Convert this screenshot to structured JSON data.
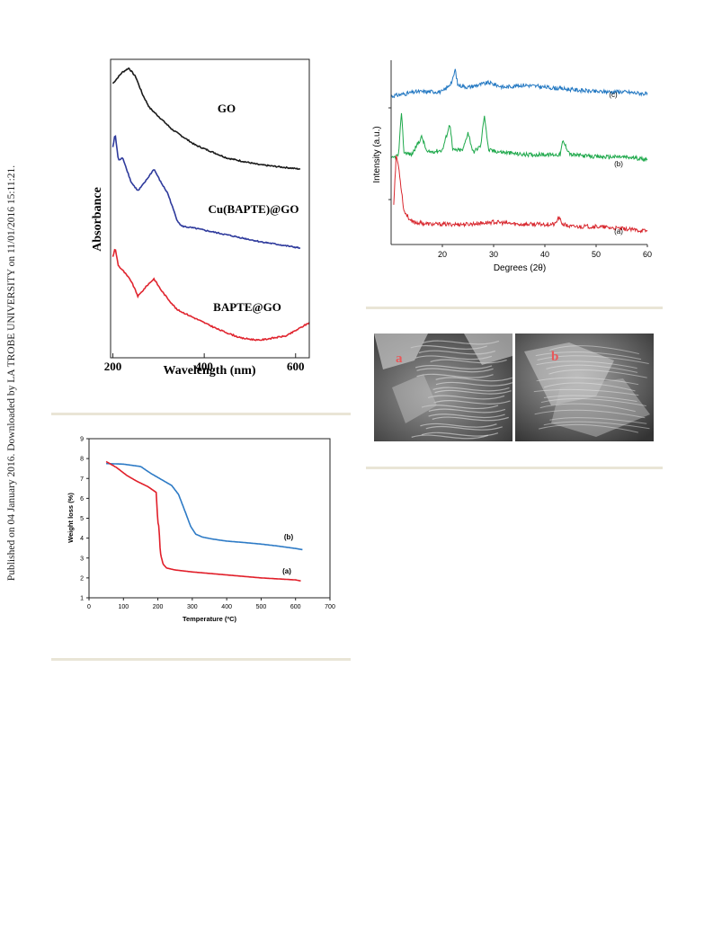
{
  "sidebar_note": "Published on 04 January 2016. Downloaded by LA TROBE UNIVERSITY on 11/01/2016 15:11:21.",
  "colors": {
    "black": "#1b1b1b",
    "blue": "#2e3a9c",
    "red": "#e0252f",
    "tga_red": "#e11f2a",
    "tga_blue": "#2e7bc6",
    "xrd_blue": "#2378c2",
    "xrd_green": "#1da84a",
    "xrd_red": "#d8272e",
    "rule": "#e9e5d6"
  },
  "chart_data": [
    {
      "type": "line",
      "xlabel": "Wavelength (nm)",
      "ylabel": "Absorbance",
      "xticks": [
        "200",
        "400",
        "600"
      ],
      "xlim": [
        195,
        630
      ],
      "series": [
        {
          "name": "GO",
          "x": [
            200,
            220,
            235,
            250,
            265,
            280,
            300,
            330,
            380,
            450,
            520,
            610
          ],
          "y": [
            0.95,
            1.0,
            1.02,
            0.98,
            0.9,
            0.84,
            0.8,
            0.74,
            0.67,
            0.61,
            0.58,
            0.56
          ]
        },
        {
          "name": "Cu(BAPTE)@GO",
          "x": [
            200,
            205,
            212,
            222,
            240,
            255,
            270,
            290,
            305,
            320,
            340,
            350,
            380,
            450,
            520,
            610
          ],
          "y": [
            0.66,
            0.72,
            0.6,
            0.61,
            0.5,
            0.46,
            0.5,
            0.56,
            0.5,
            0.45,
            0.33,
            0.3,
            0.29,
            0.26,
            0.23,
            0.2
          ]
        },
        {
          "name": "BAPTE@GO",
          "x": [
            200,
            205,
            212,
            225,
            240,
            255,
            275,
            290,
            305,
            320,
            340,
            380,
            430,
            480,
            520,
            580,
            630
          ],
          "y": [
            0.16,
            0.2,
            0.12,
            0.09,
            0.05,
            -0.02,
            0.03,
            0.06,
            0.01,
            -0.03,
            -0.08,
            -0.12,
            -0.17,
            -0.21,
            -0.22,
            -0.2,
            -0.14
          ]
        }
      ]
    },
    {
      "type": "line",
      "ylabel": "Intensity (a.u.)",
      "xlabel": "Degrees (2θ)",
      "xticks": [
        "20",
        "30",
        "40",
        "50",
        "60"
      ],
      "xlim": [
        10,
        60
      ],
      "series": [
        {
          "name": "(c)",
          "x": [
            10,
            15,
            20,
            21,
            22,
            22.5,
            23,
            25,
            27,
            29,
            32,
            36,
            40,
            45,
            50,
            55,
            60
          ],
          "y": [
            0.88,
            0.9,
            0.9,
            0.92,
            0.95,
            1.0,
            0.93,
            0.92,
            0.93,
            0.94,
            0.92,
            0.93,
            0.92,
            0.91,
            0.9,
            0.9,
            0.89
          ]
        },
        {
          "name": "(b)",
          "x": [
            10,
            11.5,
            12,
            12.5,
            14,
            16,
            17,
            20,
            21.5,
            22,
            24,
            25,
            26,
            27.5,
            28.2,
            29,
            32,
            36,
            40,
            43,
            43.5,
            45,
            50,
            55,
            60
          ],
          "y": [
            0.6,
            0.62,
            0.82,
            0.63,
            0.62,
            0.7,
            0.63,
            0.64,
            0.76,
            0.64,
            0.64,
            0.72,
            0.63,
            0.66,
            0.8,
            0.64,
            0.63,
            0.62,
            0.62,
            0.62,
            0.68,
            0.62,
            0.61,
            0.61,
            0.6
          ]
        },
        {
          "name": "(a)",
          "x": [
            10.5,
            11,
            11.5,
            12.5,
            14,
            18,
            25,
            30,
            35,
            40,
            42,
            42.7,
            43.5,
            45,
            50,
            55,
            60
          ],
          "y": [
            0.4,
            0.62,
            0.56,
            0.37,
            0.32,
            0.31,
            0.31,
            0.32,
            0.31,
            0.31,
            0.31,
            0.34,
            0.31,
            0.3,
            0.3,
            0.29,
            0.28
          ]
        }
      ]
    },
    {
      "type": "line",
      "xlabel": "Temperature (ºC)",
      "ylabel": "Weight loss (%)",
      "xlim": [
        0,
        700
      ],
      "ylim": [
        1,
        9
      ],
      "xticks": [
        0,
        100,
        200,
        300,
        400,
        500,
        600,
        700
      ],
      "yticks": [
        1,
        2,
        3,
        4,
        5,
        6,
        7,
        8,
        9
      ],
      "series": [
        {
          "name": "(b)",
          "x": [
            50,
            100,
            150,
            180,
            210,
            240,
            260,
            280,
            295,
            310,
            330,
            360,
            400,
            450,
            500,
            550,
            600,
            620
          ],
          "y": [
            7.75,
            7.72,
            7.6,
            7.25,
            6.95,
            6.65,
            6.2,
            5.3,
            4.6,
            4.2,
            4.05,
            3.95,
            3.85,
            3.78,
            3.7,
            3.6,
            3.48,
            3.42
          ]
        },
        {
          "name": "(a)",
          "x": [
            50,
            80,
            110,
            140,
            170,
            195,
            200,
            203,
            207,
            210,
            215,
            225,
            250,
            300,
            400,
            500,
            600,
            615
          ],
          "y": [
            7.85,
            7.55,
            7.15,
            6.85,
            6.6,
            6.3,
            4.8,
            4.6,
            3.3,
            3.05,
            2.7,
            2.5,
            2.4,
            2.3,
            2.15,
            2.0,
            1.9,
            1.85
          ]
        }
      ]
    }
  ],
  "sem": {
    "left_label": "a",
    "right_label": "b"
  }
}
